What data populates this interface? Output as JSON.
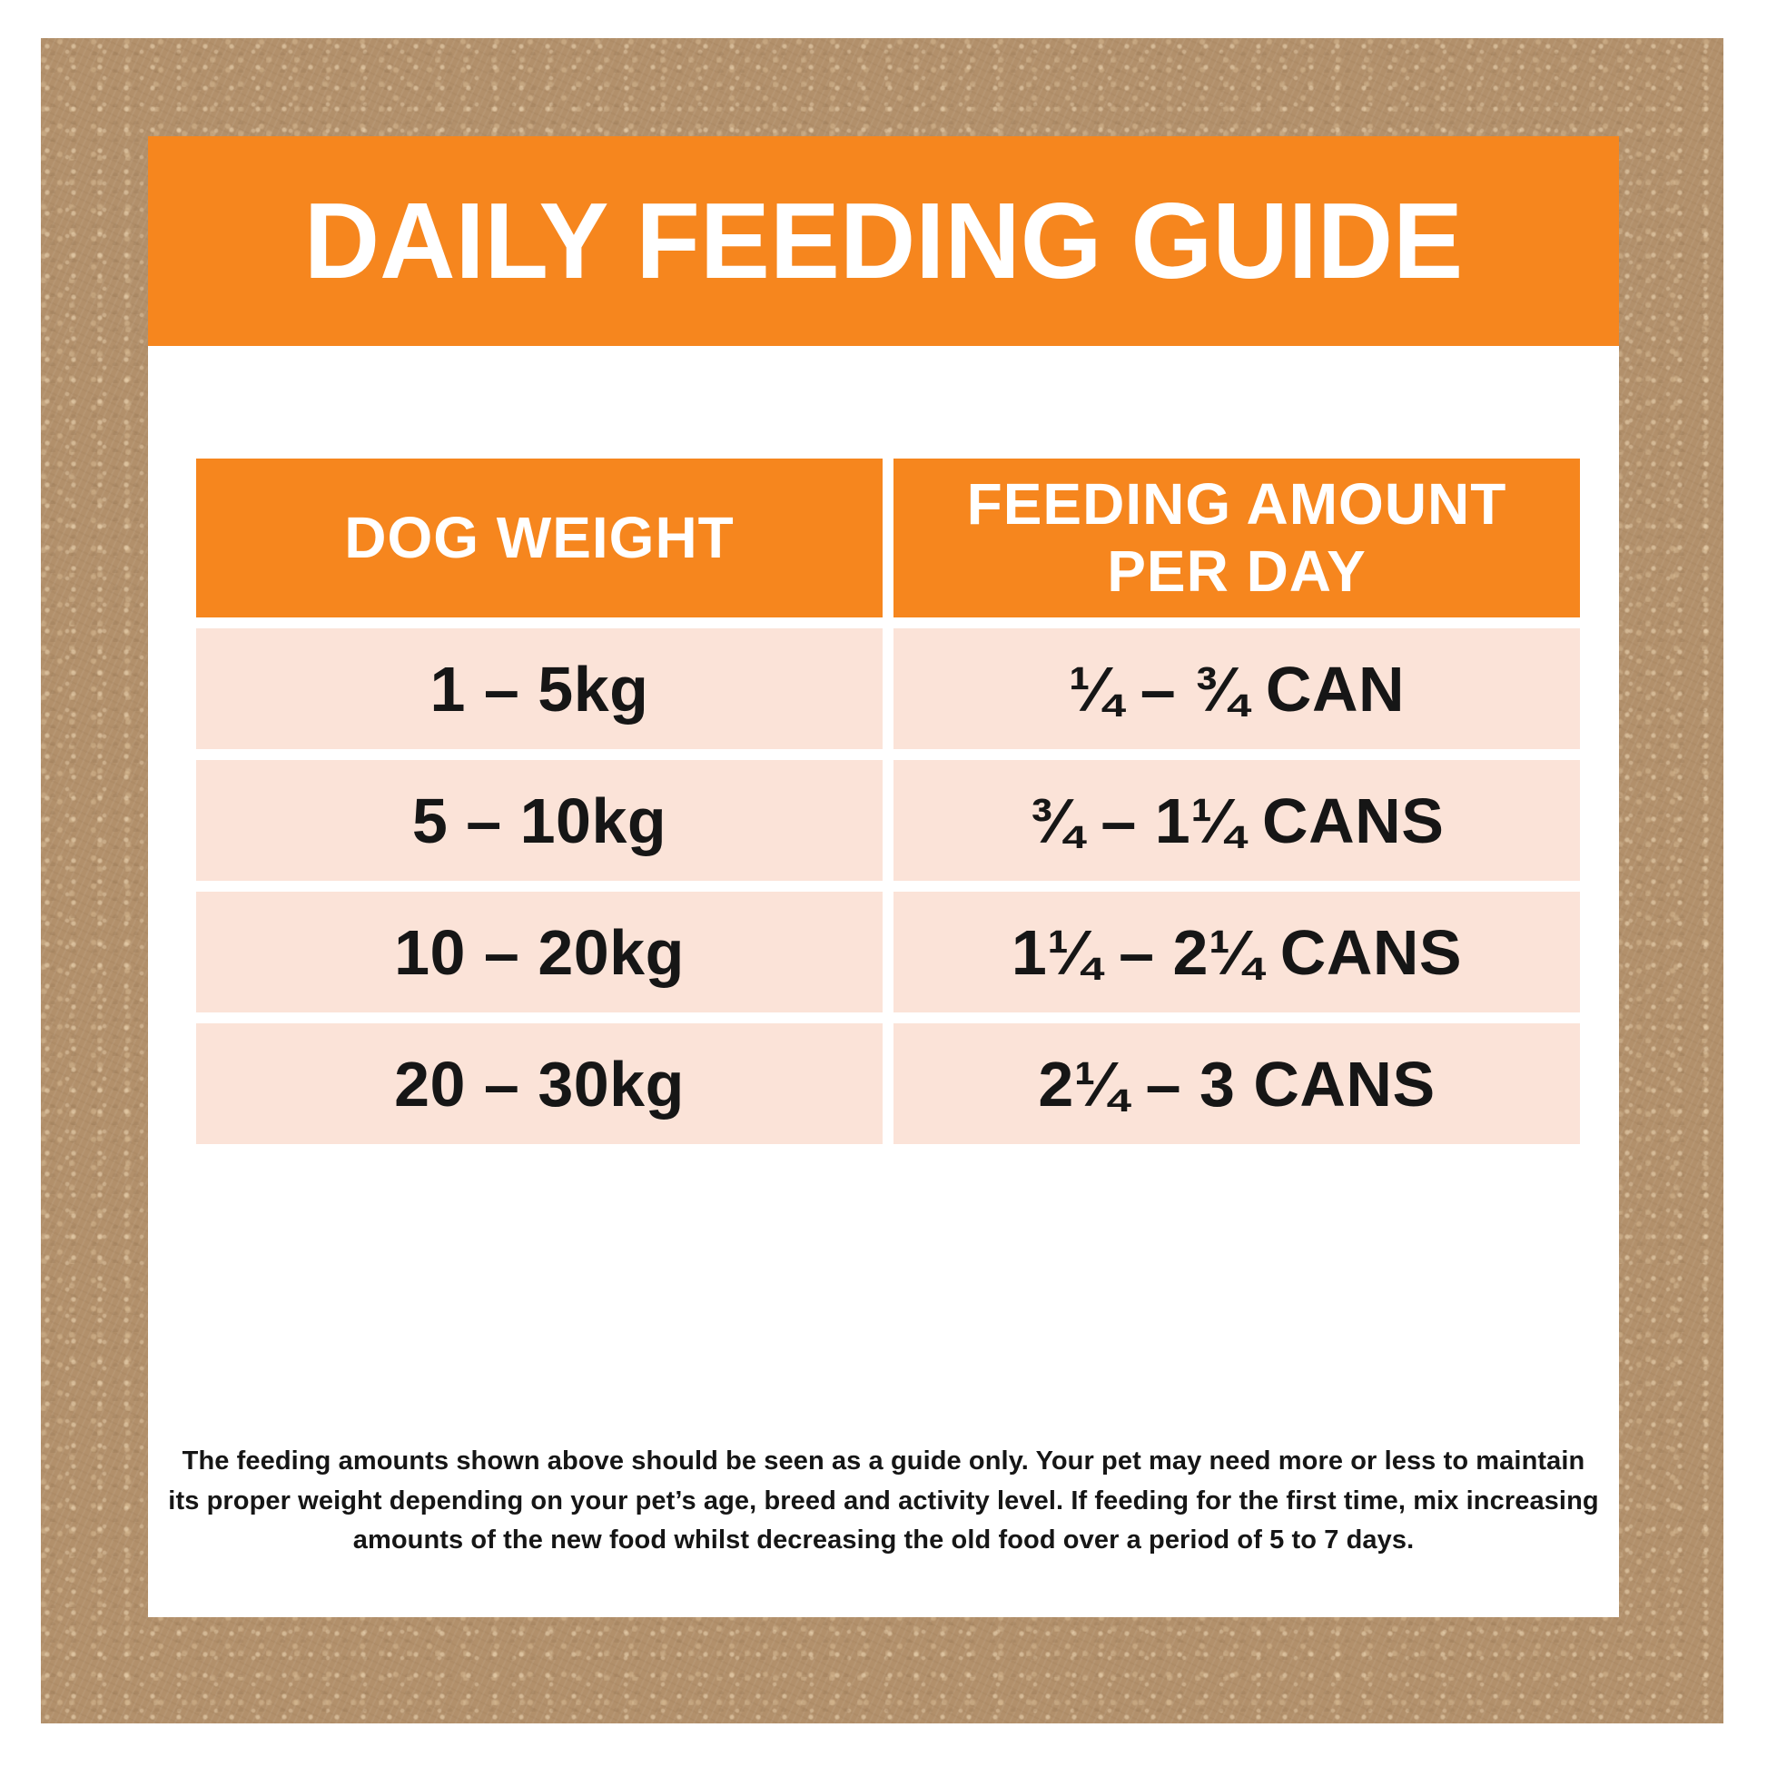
{
  "title": "DAILY FEEDING GUIDE",
  "colors": {
    "accent_orange": "#f6861e",
    "row_pink": "#fbe3d8",
    "kraft_brown": "#b2906b",
    "text_black": "#161616",
    "panel_white": "#ffffff"
  },
  "table": {
    "columns": [
      {
        "label": "DOG WEIGHT"
      },
      {
        "label": "FEEDING AMOUNT PER DAY"
      }
    ],
    "rows": [
      {
        "weight": "1 – 5kg",
        "amount": "¼ – ¾ CAN"
      },
      {
        "weight": "5 – 10kg",
        "amount": "¾ – 1¼ CANS"
      },
      {
        "weight": "10 – 20kg",
        "amount": "1¼ – 2¼ CANS"
      },
      {
        "weight": "20 – 30kg",
        "amount": "2¼ – 3 CANS"
      }
    ]
  },
  "footnote": "The feeding amounts shown above should be seen as a guide only. Your pet may need more or less to maintain its proper weight depending on your pet’s age, breed and activity level. If feeding for the first time, mix increasing amounts of the new food whilst decreasing the old food over a period of 5 to 7 days."
}
